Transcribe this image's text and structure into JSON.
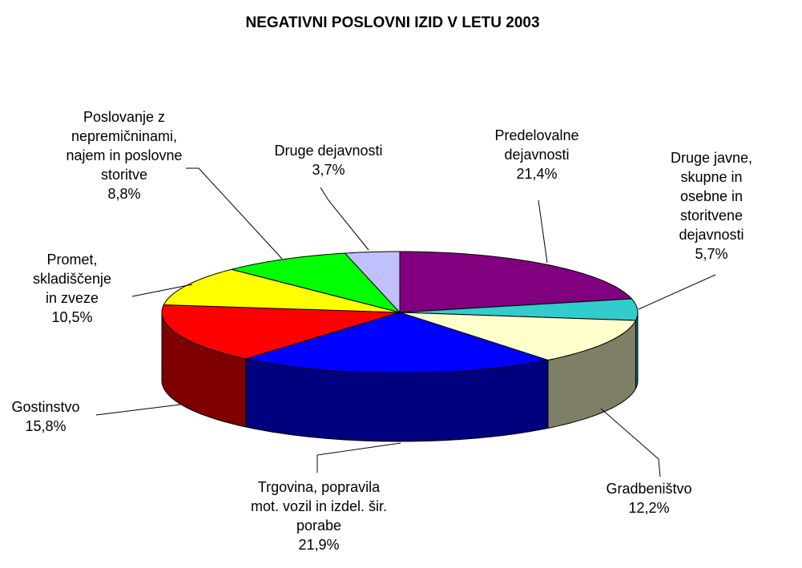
{
  "chart_data": {
    "type": "pie",
    "title": "NEGATIVNI POSLOVNI IZID V LETU 2003",
    "categories": [
      "Predelovalne\ndejavnosti",
      "Druge javne,\nskupne in\nosebne in storitvene\ndejavnosti",
      "Gradbeništvo",
      "Trgovina, popravila\nmot. vozil in izdel. šir.\nporabe",
      "Gostinstvo",
      "Promet,\nskladiščenje\nin zveze",
      "Poslovanje z\nnepremičninami,\nnajem in poslovne\nstoritve",
      "Druge dejavnosti"
    ],
    "values": [
      21.4,
      5.7,
      12.2,
      21.9,
      15.8,
      10.5,
      8.8,
      3.7
    ],
    "value_labels": [
      "21,4%",
      "5,7%",
      "12,2%",
      "21,9%",
      "15,8%",
      "10,5%",
      "8,8%",
      "3,7%"
    ],
    "colors": [
      "#800080",
      "#33cccc",
      "#ffffcc",
      "#0000ff",
      "#ff0000",
      "#ffff00",
      "#00ff00",
      "#c0c0ff"
    ]
  }
}
